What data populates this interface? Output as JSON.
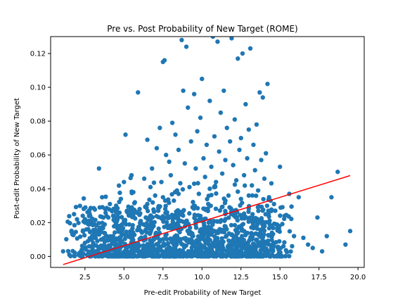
{
  "chart_data": {
    "type": "scatter",
    "title": "Pre vs. Post Probability of New Target (ROME)",
    "xlabel": "Pre-edit Probability of New Target",
    "ylabel": "Post-edit Probability of New Target",
    "xlim": [
      0.3,
      20.4
    ],
    "ylim": [
      -0.0065,
      0.13
    ],
    "xticks": [
      2.5,
      5.0,
      7.5,
      10.0,
      12.5,
      15.0,
      17.5,
      20.0
    ],
    "xtick_labels": [
      "2.5",
      "5.0",
      "7.5",
      "10.0",
      "12.5",
      "15.0",
      "17.5",
      "20.0"
    ],
    "yticks": [
      0.0,
      0.02,
      0.04,
      0.06,
      0.08,
      0.1,
      0.12
    ],
    "ytick_labels": [
      "0.00",
      "0.02",
      "0.04",
      "0.06",
      "0.08",
      "0.10",
      "0.12"
    ],
    "grid": false,
    "colors": {
      "points": "#1f77b4",
      "fit_line": "#ff0000"
    },
    "fit_line": {
      "x": [
        1.1,
        19.5
      ],
      "y": [
        -0.0048,
        0.0478
      ]
    },
    "points": [
      [
        1.1,
        0.003
      ],
      [
        1.5,
        0.001
      ],
      [
        1.8,
        0.025
      ],
      [
        2.1,
        0.001
      ],
      [
        2.3,
        0.004
      ],
      [
        2.6,
        0.016
      ],
      [
        2.8,
        0.021
      ],
      [
        3.0,
        0.011
      ],
      [
        3.2,
        0.013
      ],
      [
        3.4,
        0.052
      ],
      [
        3.6,
        0.035
      ],
      [
        3.8,
        0.002
      ],
      [
        4.0,
        0.023
      ],
      [
        4.1,
        0.031
      ],
      [
        4.3,
        0.012
      ],
      [
        4.5,
        0.03
      ],
      [
        4.7,
        0.018
      ],
      [
        4.8,
        0.034
      ],
      [
        5.0,
        0.044
      ],
      [
        5.1,
        0.072
      ],
      [
        5.3,
        0.025
      ],
      [
        5.4,
        0.006
      ],
      [
        5.6,
        0.038
      ],
      [
        5.7,
        0.032
      ],
      [
        5.9,
        0.097
      ],
      [
        6.0,
        0.028
      ],
      [
        6.1,
        0.015
      ],
      [
        6.3,
        0.046
      ],
      [
        6.4,
        0.023
      ],
      [
        6.5,
        0.069
      ],
      [
        6.7,
        0.041
      ],
      [
        6.8,
        0.052
      ],
      [
        6.9,
        0.018
      ],
      [
        7.0,
        0.036
      ],
      [
        7.1,
        0.064
      ],
      [
        7.2,
        0.027
      ],
      [
        7.3,
        0.076
      ],
      [
        7.4,
        0.044
      ],
      [
        7.5,
        0.115
      ],
      [
        7.6,
        0.116
      ],
      [
        7.7,
        0.06
      ],
      [
        7.8,
        0.024
      ],
      [
        7.9,
        0.056
      ],
      [
        8.0,
        0.048
      ],
      [
        8.1,
        0.079
      ],
      [
        8.2,
        0.033
      ],
      [
        8.3,
        0.072
      ],
      [
        8.4,
        0.039
      ],
      [
        8.5,
        0.063
      ],
      [
        8.6,
        0.021
      ],
      [
        8.7,
        0.128
      ],
      [
        8.8,
        0.098
      ],
      [
        8.9,
        0.055
      ],
      [
        9.0,
        0.124
      ],
      [
        9.1,
        0.088
      ],
      [
        9.2,
        0.041
      ],
      [
        9.3,
        0.068
      ],
      [
        9.4,
        0.029
      ],
      [
        9.5,
        0.096
      ],
      [
        9.6,
        0.052
      ],
      [
        9.7,
        0.074
      ],
      [
        9.8,
        0.037
      ],
      [
        9.9,
        0.082
      ],
      [
        10.0,
        0.105
      ],
      [
        10.1,
        0.058
      ],
      [
        10.2,
        0.047
      ],
      [
        10.3,
        0.066
      ],
      [
        10.4,
        0.031
      ],
      [
        10.5,
        0.092
      ],
      [
        10.6,
        0.053
      ],
      [
        10.7,
        0.13
      ],
      [
        10.8,
        0.071
      ],
      [
        10.9,
        0.044
      ],
      [
        11.0,
        0.127
      ],
      [
        11.1,
        0.062
      ],
      [
        11.2,
        0.085
      ],
      [
        11.3,
        0.049
      ],
      [
        11.4,
        0.098
      ],
      [
        11.5,
        0.057
      ],
      [
        11.6,
        0.076
      ],
      [
        11.7,
        0.036
      ],
      [
        11.8,
        0.068
      ],
      [
        11.9,
        0.129
      ],
      [
        12.0,
        0.054
      ],
      [
        12.1,
        0.081
      ],
      [
        12.2,
        0.045
      ],
      [
        12.3,
        0.117
      ],
      [
        12.4,
        0.063
      ],
      [
        12.5,
        0.07
      ],
      [
        12.6,
        0.12
      ],
      [
        12.7,
        0.048
      ],
      [
        12.8,
        0.09
      ],
      [
        12.9,
        0.058
      ],
      [
        13.0,
        0.075
      ],
      [
        13.1,
        0.123
      ],
      [
        13.2,
        0.042
      ],
      [
        13.3,
        0.066
      ],
      [
        13.4,
        0.051
      ],
      [
        13.5,
        0.078
      ],
      [
        13.6,
        0.039
      ],
      [
        13.7,
        0.097
      ],
      [
        13.8,
        0.057
      ],
      [
        13.9,
        0.094
      ],
      [
        14.0,
        0.046
      ],
      [
        14.1,
        0.061
      ],
      [
        14.2,
        0.102
      ],
      [
        14.3,
        0.035
      ],
      [
        14.4,
        0.033
      ],
      [
        14.7,
        0.027
      ],
      [
        15.0,
        0.053
      ],
      [
        15.3,
        0.024
      ],
      [
        15.6,
        0.037
      ],
      [
        15.9,
        0.012
      ],
      [
        16.2,
        0.035
      ],
      [
        16.5,
        0.011
      ],
      [
        16.8,
        0.007
      ],
      [
        17.1,
        0.005
      ],
      [
        17.4,
        0.023
      ],
      [
        17.7,
        0.003
      ],
      [
        18.0,
        0.012
      ],
      [
        18.3,
        0.035
      ],
      [
        18.7,
        0.05
      ],
      [
        19.2,
        0.007
      ],
      [
        19.5,
        0.015
      ],
      [
        13.0,
        0.036
      ],
      [
        12.5,
        0.034
      ],
      [
        11.5,
        0.033
      ],
      [
        10.5,
        0.04
      ],
      [
        9.5,
        0.043
      ],
      [
        8.5,
        0.037
      ],
      [
        7.5,
        0.035
      ],
      [
        6.5,
        0.031
      ],
      [
        5.5,
        0.029
      ],
      [
        4.5,
        0.026
      ],
      [
        3.5,
        0.017
      ],
      [
        2.5,
        0.008
      ]
    ]
  }
}
